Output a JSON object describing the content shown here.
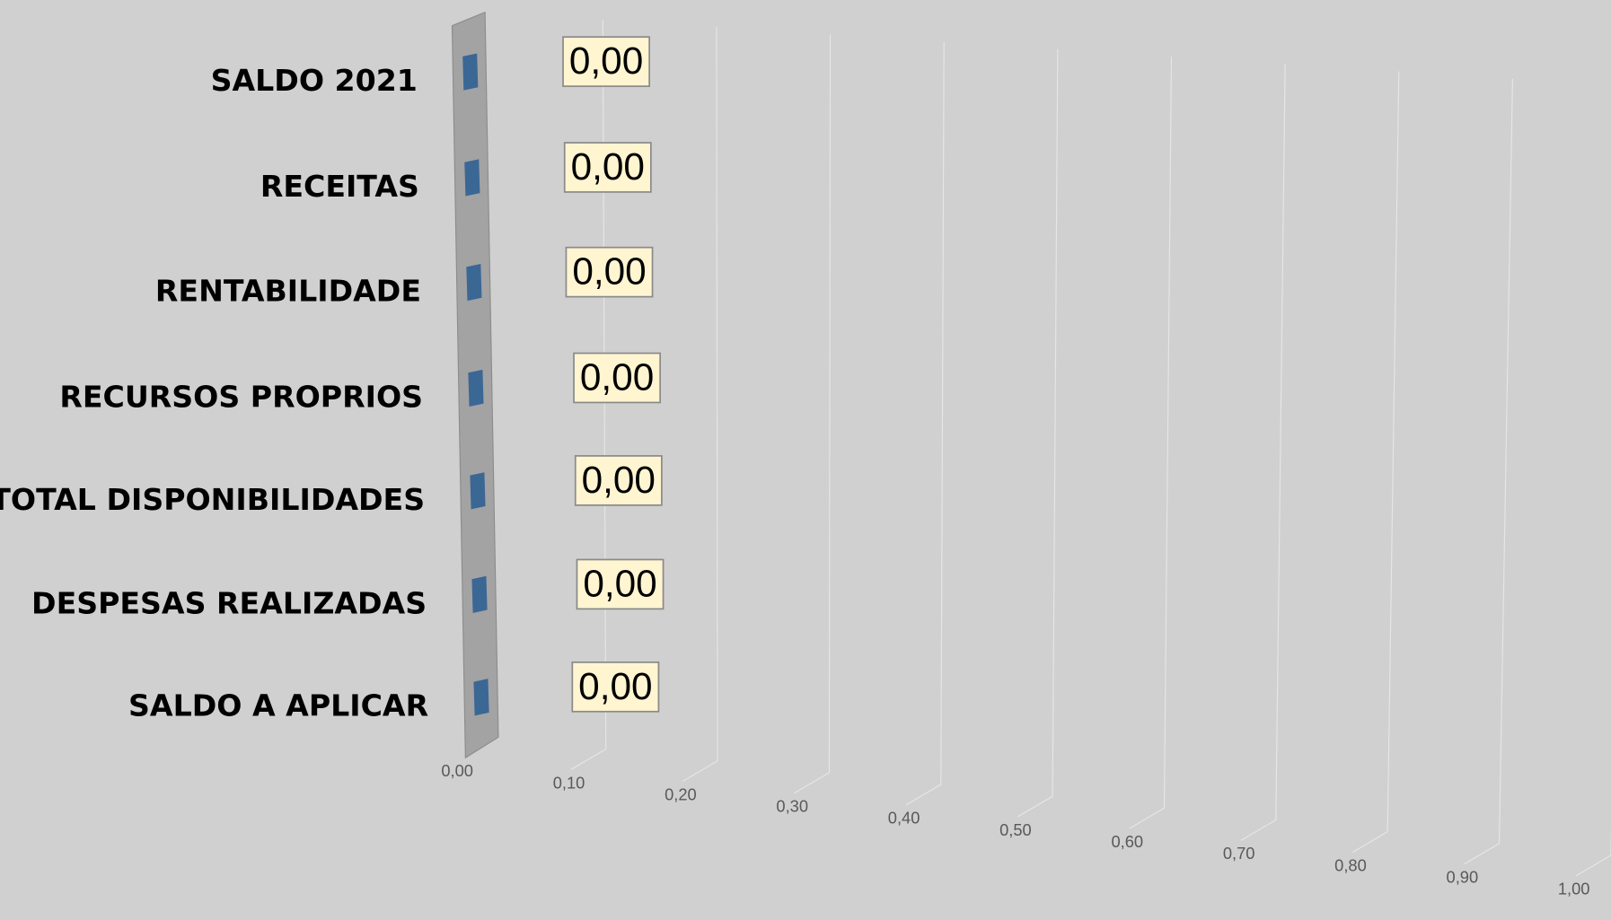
{
  "chart_data": {
    "type": "bar3d_horizontal",
    "categories": [
      "SALDO 2021",
      "RECEITAS",
      "RENTABILIDADE",
      "RECURSOS PROPRIOS",
      "TOTAL DISPONIBILIDADES",
      "DESPESAS REALIZADAS",
      "SALDO A APLICAR"
    ],
    "values": [
      0,
      0,
      0,
      0,
      0,
      0,
      0
    ],
    "value_labels": [
      "0,00",
      "0,00",
      "0,00",
      "0,00",
      "0,00",
      "0,00",
      "0,00"
    ],
    "color": "#3b6795",
    "xlim": [
      0,
      1
    ],
    "xticks": [
      {
        "value": 0,
        "label": "0,00"
      },
      {
        "value": 0.1,
        "label": "0,10"
      },
      {
        "value": 0.2,
        "label": "0,20"
      },
      {
        "value": 0.3,
        "label": "0,30"
      },
      {
        "value": 0.4,
        "label": "0,40"
      },
      {
        "value": 0.5,
        "label": "0,50"
      },
      {
        "value": 0.6,
        "label": "0,60"
      },
      {
        "value": 0.7,
        "label": "0,70"
      },
      {
        "value": 0.8,
        "label": "0,80"
      },
      {
        "value": 0.9,
        "label": "0,90"
      },
      {
        "value": 1,
        "label": "1,00"
      }
    ],
    "grid": true
  }
}
